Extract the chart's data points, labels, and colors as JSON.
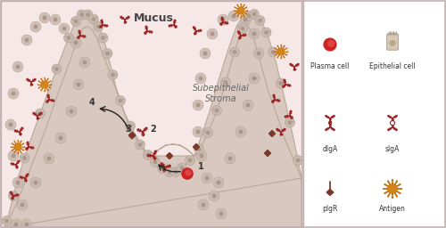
{
  "bg_color": "#ffffff",
  "mucus_fill": "#f7e8e8",
  "epi_fill": "#d8c8c0",
  "epi_edge": "#b8a898",
  "stroma_fill": "#faf0f0",
  "cell_body": "#d4c0b8",
  "cell_nucleus": "#b8a090",
  "iga_color": "#9b2020",
  "pIgR_color": "#7a3828",
  "antigen_color": "#d4851a",
  "antigen_spike": "#c07010",
  "plasma_color": "#cc2222",
  "plasma_inner": "#e84040",
  "arrow_color": "#222222",
  "label_dark": "#333333",
  "label_gray": "#555555",
  "mucus_label": "Mucus",
  "stroma_label": "Subepithelial\nStroma",
  "legend_labels": [
    "Plasma cell",
    "Epithelial cell",
    "dIgA",
    "sIgA",
    "pIgR",
    "Antigen"
  ]
}
